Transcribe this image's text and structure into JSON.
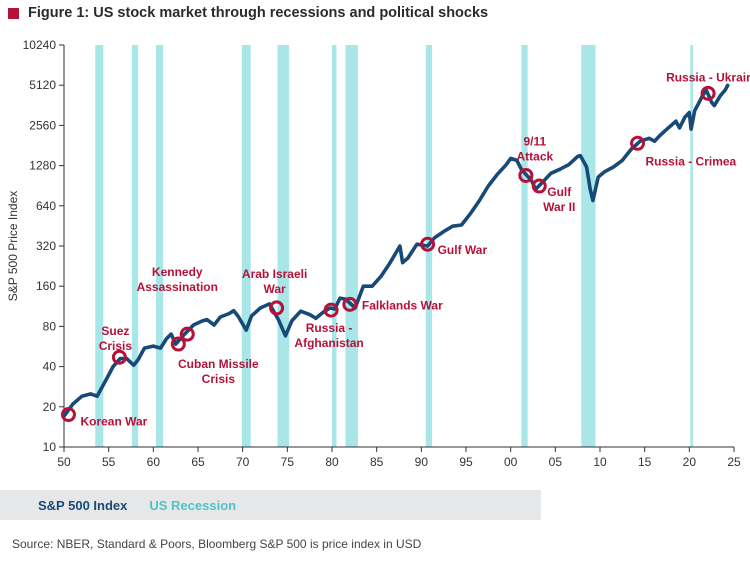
{
  "title": "Figure 1: US stock market through recessions and political shocks",
  "legend": {
    "index_label": "S&P 500 Index",
    "recession_label": "US Recession"
  },
  "source": "Source: NBER, Standard & Poors, Bloomberg S&P 500 is price index in USD",
  "colors": {
    "line": "#174a77",
    "recession": "#a8e6e8",
    "event": "#b5123a",
    "title_marker": "#b5123a"
  },
  "chart_data": {
    "type": "line",
    "ylabel": "S&P 500 Price Index",
    "yscale": "log2",
    "ylim": [
      10,
      10240
    ],
    "yticks": [
      10,
      20,
      40,
      80,
      160,
      320,
      640,
      1280,
      2560,
      5120,
      10240
    ],
    "xlim": [
      1950,
      2025
    ],
    "xticks": [
      1950,
      1955,
      1960,
      1965,
      1970,
      1975,
      1980,
      1985,
      1990,
      1995,
      2000,
      2005,
      2010,
      2015,
      2020,
      2025
    ],
    "xticklabels": [
      "50",
      "55",
      "60",
      "65",
      "70",
      "75",
      "80",
      "85",
      "90",
      "95",
      "00",
      "05",
      "10",
      "15",
      "20",
      "25"
    ],
    "grid": false,
    "recessions": [
      [
        1953.5,
        1954.4
      ],
      [
        1957.6,
        1958.3
      ],
      [
        1960.3,
        1961.1
      ],
      [
        1969.9,
        1970.9
      ],
      [
        1973.9,
        1975.2
      ],
      [
        1980.0,
        1980.5
      ],
      [
        1981.5,
        1982.9
      ],
      [
        1990.5,
        1991.2
      ],
      [
        2001.2,
        2001.9
      ],
      [
        2007.9,
        2009.5
      ],
      [
        2020.1,
        2020.4
      ]
    ],
    "series": [
      {
        "name": "S&P 500 Index",
        "x": [
          1950.0,
          1951.0,
          1952.0,
          1953.0,
          1953.7,
          1954.5,
          1955.5,
          1956.3,
          1957.0,
          1957.8,
          1958.3,
          1959.0,
          1960.0,
          1960.8,
          1961.5,
          1962.0,
          1962.5,
          1963.5,
          1964.5,
          1965.5,
          1966.0,
          1966.8,
          1967.5,
          1968.5,
          1969.0,
          1969.5,
          1970.4,
          1971.0,
          1972.0,
          1973.0,
          1974.0,
          1974.8,
          1975.5,
          1976.5,
          1977.5,
          1978.2,
          1979.0,
          1979.8,
          1980.3,
          1980.9,
          1981.5,
          1982.6,
          1983.5,
          1984.5,
          1985.5,
          1986.5,
          1987.6,
          1987.9,
          1988.5,
          1989.5,
          1990.7,
          1991.5,
          1992.5,
          1993.5,
          1994.5,
          1995.5,
          1996.5,
          1997.5,
          1998.5,
          1999.5,
          2000.0,
          2000.7,
          2001.2,
          2001.7,
          2002.3,
          2002.8,
          2003.5,
          2004.5,
          2005.5,
          2006.5,
          2007.5,
          2007.8,
          2008.5,
          2008.9,
          2009.2,
          2009.8,
          2010.5,
          2011.5,
          2012.5,
          2013.5,
          2014.5,
          2015.5,
          2016.1,
          2016.7,
          2017.5,
          2018.5,
          2018.9,
          2019.5,
          2020.0,
          2020.2,
          2020.6,
          2021.0,
          2021.5,
          2021.9,
          2022.5,
          2022.8,
          2023.5,
          2024.0,
          2024.3
        ],
        "values": [
          17,
          21,
          24,
          25,
          24,
          30,
          40,
          46,
          46,
          41,
          45,
          55,
          57,
          55,
          65,
          70,
          59,
          70,
          82,
          88,
          90,
          82,
          94,
          100,
          105,
          95,
          75,
          96,
          110,
          118,
          90,
          68,
          88,
          104,
          98,
          92,
          102,
          110,
          108,
          130,
          128,
          110,
          160,
          160,
          190,
          240,
          320,
          240,
          260,
          330,
          320,
          370,
          410,
          450,
          460,
          560,
          700,
          900,
          1100,
          1300,
          1450,
          1400,
          1200,
          1100,
          1000,
          850,
          950,
          1120,
          1200,
          1300,
          1500,
          1520,
          1250,
          850,
          700,
          1050,
          1150,
          1250,
          1400,
          1700,
          1950,
          2050,
          1950,
          2150,
          2400,
          2750,
          2450,
          2950,
          3200,
          2400,
          3300,
          3700,
          4300,
          4700,
          3800,
          3600,
          4300,
          4700,
          5100
        ]
      }
    ],
    "events": [
      {
        "label": "Korean War",
        "x": 1950.5,
        "y": 17.5
      },
      {
        "label": "Suez Crisis",
        "x": 1956.2,
        "y": 47
      },
      {
        "label": "Cuban Missile Crisis",
        "x": 1962.8,
        "y": 59
      },
      {
        "label": "Kennedy Assassination",
        "x": 1963.8,
        "y": 70
      },
      {
        "label": "Arab Israeli War",
        "x": 1973.8,
        "y": 110
      },
      {
        "label": "Russia - Afghanistan",
        "x": 1979.9,
        "y": 106
      },
      {
        "label": "Falklands War",
        "x": 1982.0,
        "y": 117
      },
      {
        "label": "Gulf War",
        "x": 1990.7,
        "y": 330
      },
      {
        "label": "9/11 Attack",
        "x": 2001.7,
        "y": 1080
      },
      {
        "label": "Gulf War II",
        "x": 2003.2,
        "y": 900
      },
      {
        "label": "Russia - Crimea",
        "x": 2014.2,
        "y": 1880
      },
      {
        "label": "Russia - Ukraine",
        "x": 2022.1,
        "y": 4450
      }
    ]
  }
}
